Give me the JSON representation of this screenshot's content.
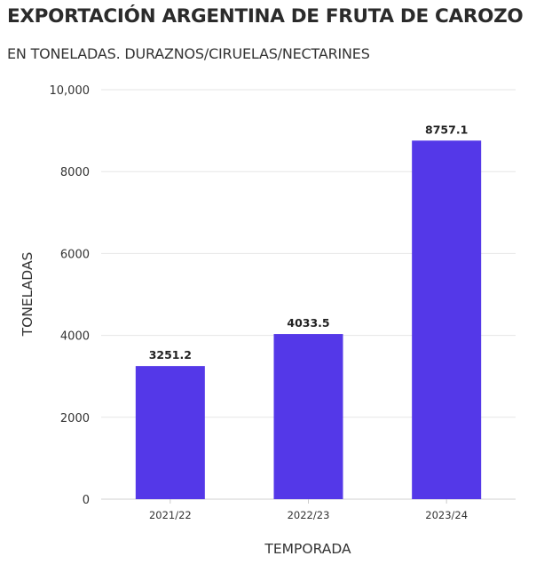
{
  "chart_data": {
    "type": "bar",
    "title": "EXPORTACIÓN ARGENTINA DE FRUTA DE CAROZO",
    "subtitle": "EN TONELADAS. DURAZNOS/CIRUELAS/NECTARINES",
    "xlabel": "TEMPORADA",
    "ylabel": "TONELADAS",
    "categories": [
      "2021/22",
      "2022/23",
      "2023/24"
    ],
    "values": [
      3251.2,
      4033.5,
      8757.1
    ],
    "data_labels": [
      "3251.2",
      "4033.5",
      "8757.1"
    ],
    "ylim": [
      0,
      10000
    ],
    "yticks": [
      0,
      2000,
      4000,
      6000,
      8000,
      10000
    ],
    "ytick_labels": [
      "0",
      "2000",
      "4000",
      "6000",
      "8000",
      "10,000"
    ],
    "grid": true,
    "bar_color": "#5438E8"
  }
}
